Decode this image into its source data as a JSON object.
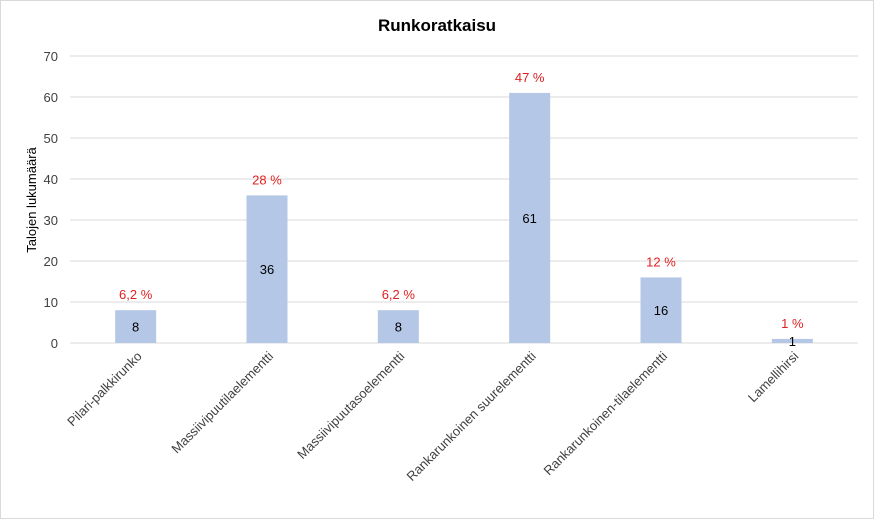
{
  "chart_data": {
    "type": "bar",
    "title": "Runkoratkaisu",
    "xlabel": "",
    "ylabel": "Talojen lukumäärä",
    "ylim": [
      0,
      70
    ],
    "yticks": [
      0,
      10,
      20,
      30,
      40,
      50,
      60,
      70
    ],
    "grid": true,
    "categories": [
      "Pilari-palkkirunko",
      "Massiivipuutilaelementti",
      "Massiivipuutasoelementti",
      "Rankarunkoinen suurelementti",
      "Rankarunkoinen-tilaelementti",
      "Lamellihirsi"
    ],
    "values": [
      8,
      36,
      8,
      61,
      16,
      1
    ],
    "percent_labels": [
      "6,2 %",
      "28 %",
      "6,2 %",
      "47 %",
      "12 %",
      "1 %"
    ],
    "bar_color": "#b4c7e7",
    "percent_label_color": "#e02020",
    "grid_color": "#d9d9d9"
  }
}
